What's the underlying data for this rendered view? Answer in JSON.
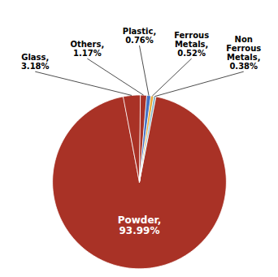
{
  "chart_data": {
    "type": "pie",
    "values": [
      93.99,
      3.18,
      1.17,
      0.76,
      0.52,
      0.38
    ],
    "value_labels": [
      "Powder,\n93.99%",
      "Glass,\n3.18%",
      "Others,\n1.17%",
      "Plastic,\n0.76%",
      "Ferrous\nMetals,\n0.52%",
      "Non\nFerrous\nMetals,\n0.38%"
    ],
    "colors": [
      "#a93226",
      "#a93226",
      "#a93226",
      "#4472c4",
      "#e8a838",
      "#7fb3c8"
    ],
    "data_labels": true
  }
}
